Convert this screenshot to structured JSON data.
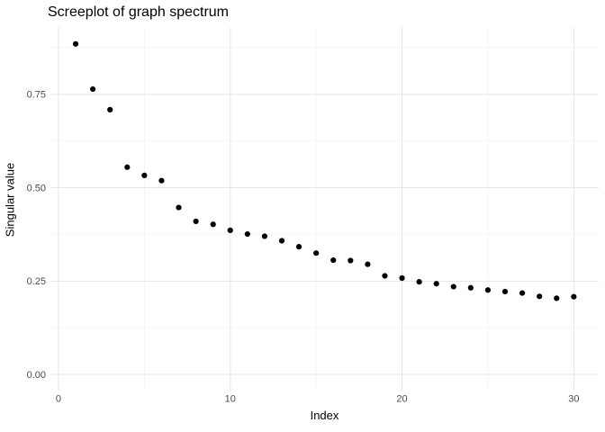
{
  "chart_data": {
    "type": "scatter",
    "title": "Screeplot of graph spectrum",
    "xlabel": "Index",
    "ylabel": "Singular value",
    "x": [
      1,
      2,
      3,
      4,
      5,
      6,
      7,
      8,
      9,
      10,
      11,
      12,
      13,
      14,
      15,
      16,
      17,
      18,
      19,
      20,
      21,
      22,
      23,
      24,
      25,
      26,
      27,
      28,
      29,
      30
    ],
    "y": [
      0.885,
      0.764,
      0.709,
      0.555,
      0.533,
      0.519,
      0.447,
      0.41,
      0.402,
      0.386,
      0.376,
      0.37,
      0.358,
      0.342,
      0.325,
      0.306,
      0.305,
      0.295,
      0.264,
      0.258,
      0.248,
      0.243,
      0.235,
      0.232,
      0.226,
      0.222,
      0.218,
      0.209,
      0.204,
      0.208
    ],
    "xlim": [
      -0.45,
      31.45
    ],
    "ylim": [
      -0.04425,
      0.92925
    ],
    "x_major_ticks": [
      0,
      10,
      20,
      30
    ],
    "x_tick_labels": [
      "0",
      "10",
      "20",
      "30"
    ],
    "x_minor_ticks": [
      5,
      15,
      25
    ],
    "y_major_ticks": [
      0,
      0.25,
      0.5,
      0.75
    ],
    "y_tick_labels": [
      "0.00",
      "0.25",
      "0.50",
      "0.75"
    ],
    "y_minor_ticks": [
      0.125,
      0.375,
      0.625,
      0.875
    ],
    "grid": "on",
    "legend": "none",
    "point_color": "#000000",
    "point_radius": 3.1,
    "grid_major_color": "#E5E5E5",
    "grid_minor_color": "#F2F2F2",
    "axis_text_color": "#4D4D4D",
    "title_color": "#000000",
    "background_color": "#FFFFFF"
  }
}
